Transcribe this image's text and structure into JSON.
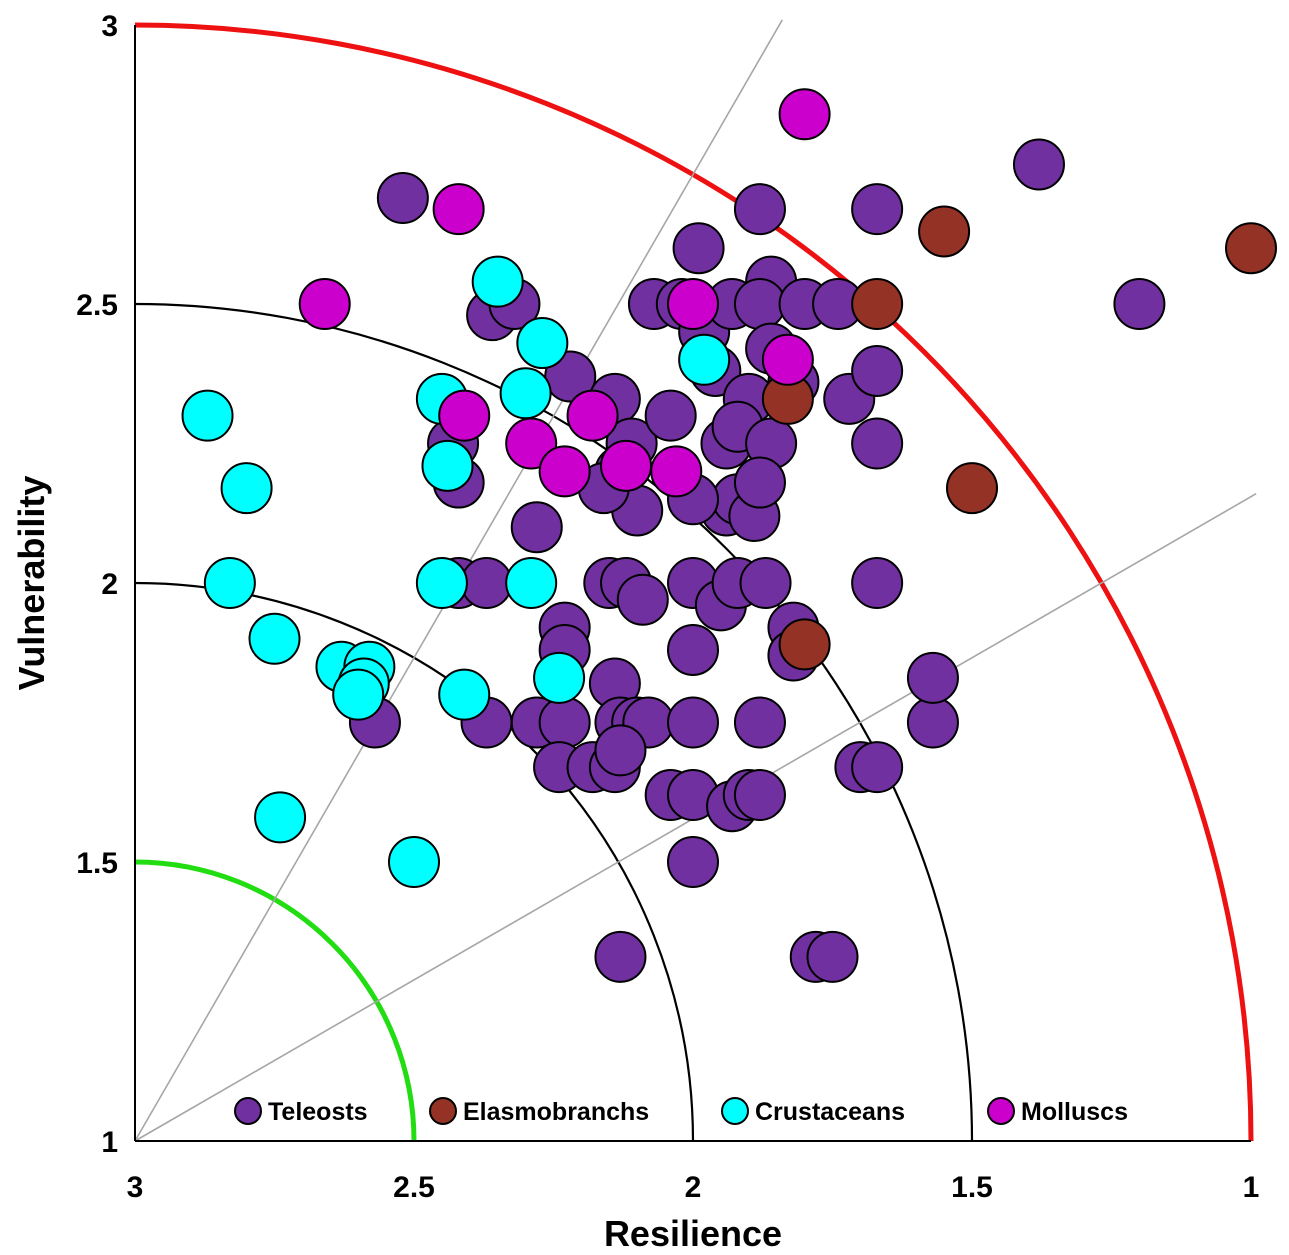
{
  "chart_data": {
    "type": "scatter",
    "xlabel": "Resilience",
    "ylabel": "Vulnerability",
    "xlim": [
      3,
      1
    ],
    "ylim": [
      1,
      3
    ],
    "x_reversed": true,
    "x_ticks": [
      "3",
      "2.5",
      "2",
      "1.5",
      "1"
    ],
    "y_ticks": [
      "1",
      "1.5",
      "2",
      "2.5",
      "3"
    ],
    "legend_position": "bottom",
    "arcs": [
      {
        "radius": 0.5,
        "color": "#22dd11"
      },
      {
        "radius": 1.0,
        "color": "#000000"
      },
      {
        "radius": 1.5,
        "color": "#000000"
      },
      {
        "radius": 2.0,
        "color": "#ee1111"
      }
    ],
    "ray_angles_deg": [
      30,
      60
    ],
    "series": [
      {
        "name": "Teleosts",
        "color": "#7030a0",
        "points": [
          [
            2.52,
            2.69
          ],
          [
            2.42,
            2.18
          ],
          [
            2.43,
            2.25
          ],
          [
            2.36,
            2.48
          ],
          [
            2.32,
            2.5
          ],
          [
            2.28,
            2.1
          ],
          [
            2.22,
            2.37
          ],
          [
            2.14,
            2.33
          ],
          [
            2.11,
            2.25
          ],
          [
            2.13,
            2.2
          ],
          [
            2.1,
            2.13
          ],
          [
            2.16,
            2.17
          ],
          [
            2.04,
            2.3
          ],
          [
            1.99,
            2.6
          ],
          [
            2.07,
            2.5
          ],
          [
            2.02,
            2.5
          ],
          [
            1.98,
            2.45
          ],
          [
            1.96,
            2.38
          ],
          [
            1.93,
            2.5
          ],
          [
            1.88,
            2.67
          ],
          [
            1.86,
            2.54
          ],
          [
            1.88,
            2.5
          ],
          [
            1.86,
            2.42
          ],
          [
            1.9,
            2.33
          ],
          [
            1.94,
            2.25
          ],
          [
            1.92,
            2.28
          ],
          [
            1.86,
            2.25
          ],
          [
            1.82,
            2.36
          ],
          [
            1.8,
            2.5
          ],
          [
            1.74,
            2.5
          ],
          [
            1.72,
            2.33
          ],
          [
            1.67,
            2.38
          ],
          [
            1.67,
            2.67
          ],
          [
            1.67,
            2.25
          ],
          [
            1.38,
            2.75
          ],
          [
            1.2,
            2.5
          ],
          [
            1.94,
            2.13
          ],
          [
            1.92,
            2.15
          ],
          [
            1.89,
            2.12
          ],
          [
            1.88,
            2.18
          ],
          [
            2.0,
            2.15
          ],
          [
            2.42,
            2.0
          ],
          [
            2.37,
            2.0
          ],
          [
            2.15,
            2.0
          ],
          [
            2.12,
            2.0
          ],
          [
            2.09,
            1.97
          ],
          [
            2.0,
            2.0
          ],
          [
            1.95,
            1.96
          ],
          [
            1.92,
            2.0
          ],
          [
            1.87,
            2.0
          ],
          [
            1.67,
            2.0
          ],
          [
            2.23,
            1.92
          ],
          [
            2.23,
            1.88
          ],
          [
            2.0,
            1.88
          ],
          [
            1.82,
            1.92
          ],
          [
            1.82,
            1.87
          ],
          [
            2.14,
            1.82
          ],
          [
            2.57,
            1.75
          ],
          [
            2.37,
            1.75
          ],
          [
            2.28,
            1.75
          ],
          [
            2.23,
            1.75
          ],
          [
            2.13,
            1.75
          ],
          [
            2.1,
            1.75
          ],
          [
            2.08,
            1.75
          ],
          [
            2.0,
            1.75
          ],
          [
            1.88,
            1.75
          ],
          [
            1.57,
            1.75
          ],
          [
            1.57,
            1.83
          ],
          [
            2.24,
            1.67
          ],
          [
            2.18,
            1.67
          ],
          [
            2.14,
            1.67
          ],
          [
            2.13,
            1.7
          ],
          [
            2.04,
            1.62
          ],
          [
            2.0,
            1.62
          ],
          [
            1.93,
            1.6
          ],
          [
            1.9,
            1.62
          ],
          [
            1.88,
            1.62
          ],
          [
            1.7,
            1.67
          ],
          [
            1.67,
            1.67
          ],
          [
            2.0,
            1.5
          ],
          [
            2.13,
            1.33
          ],
          [
            1.78,
            1.33
          ],
          [
            1.75,
            1.33
          ]
        ]
      },
      {
        "name": "Elasmobranchs",
        "color": "#943226",
        "points": [
          [
            1.55,
            2.63
          ],
          [
            1.67,
            2.5
          ],
          [
            1.83,
            2.33
          ],
          [
            1.5,
            2.17
          ],
          [
            1.8,
            1.89
          ],
          [
            1.0,
            2.6
          ]
        ]
      },
      {
        "name": "Crustaceans",
        "color": "#00ffff",
        "points": [
          [
            2.35,
            2.54
          ],
          [
            2.27,
            2.43
          ],
          [
            2.3,
            2.34
          ],
          [
            2.45,
            2.33
          ],
          [
            2.44,
            2.21
          ],
          [
            2.87,
            2.3
          ],
          [
            2.8,
            2.17
          ],
          [
            2.83,
            2.0
          ],
          [
            2.45,
            2.0
          ],
          [
            2.29,
            2.0
          ],
          [
            2.75,
            1.9
          ],
          [
            2.63,
            1.85
          ],
          [
            2.58,
            1.85
          ],
          [
            2.59,
            1.82
          ],
          [
            2.6,
            1.8
          ],
          [
            2.41,
            1.8
          ],
          [
            2.24,
            1.83
          ],
          [
            1.98,
            2.4
          ],
          [
            2.74,
            1.58
          ],
          [
            2.5,
            1.5
          ]
        ]
      },
      {
        "name": "Molluscs",
        "color": "#cc00cc",
        "points": [
          [
            1.8,
            2.84
          ],
          [
            2.42,
            2.67
          ],
          [
            2.66,
            2.5
          ],
          [
            2.0,
            2.5
          ],
          [
            1.83,
            2.4
          ],
          [
            2.41,
            2.3
          ],
          [
            2.18,
            2.3
          ],
          [
            2.29,
            2.25
          ],
          [
            2.23,
            2.2
          ],
          [
            2.12,
            2.21
          ],
          [
            2.03,
            2.2
          ]
        ]
      }
    ]
  }
}
